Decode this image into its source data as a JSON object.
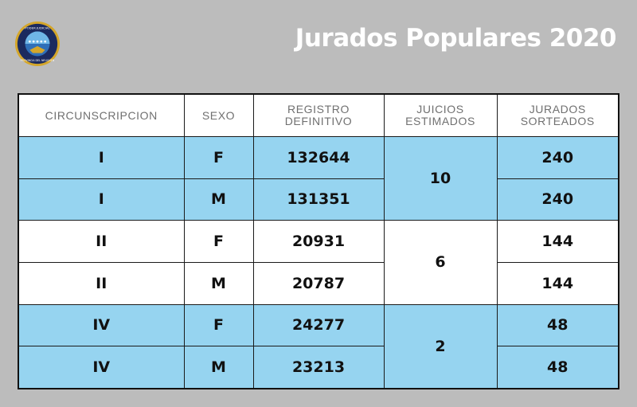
{
  "header": {
    "title": "Jurados Populares 2020",
    "logo_text_top": "PODER JUDICIAL",
    "logo_text_bottom": "PROVINCIA DEL NEUQUEN"
  },
  "table": {
    "headers": [
      "CIRCUNSCRIPCION",
      "SEXO",
      "REGISTRO\nDEFINITIVO",
      "JUICIOS\nESTIMADOS",
      "JURADOS\nSORTEADOS"
    ],
    "groups": [
      {
        "juicios": "10",
        "rows": [
          {
            "circ": "I",
            "sexo": "F",
            "registro": "132644",
            "jurados": "240"
          },
          {
            "circ": "I",
            "sexo": "M",
            "registro": "131351",
            "jurados": "240"
          }
        ]
      },
      {
        "juicios": "6",
        "rows": [
          {
            "circ": "II",
            "sexo": "F",
            "registro": "20931",
            "jurados": "144"
          },
          {
            "circ": "II",
            "sexo": "M",
            "registro": "20787",
            "jurados": "144"
          }
        ]
      },
      {
        "juicios": "2",
        "rows": [
          {
            "circ": "IV",
            "sexo": "F",
            "registro": "24277",
            "jurados": "48"
          },
          {
            "circ": "IV",
            "sexo": "M",
            "registro": "23213",
            "jurados": "48"
          }
        ]
      }
    ]
  },
  "colors": {
    "background": "#bcbcbc",
    "row_blue": "#96d4f0",
    "logo_navy": "#1b2a5e",
    "logo_gold": "#d4a62a"
  }
}
